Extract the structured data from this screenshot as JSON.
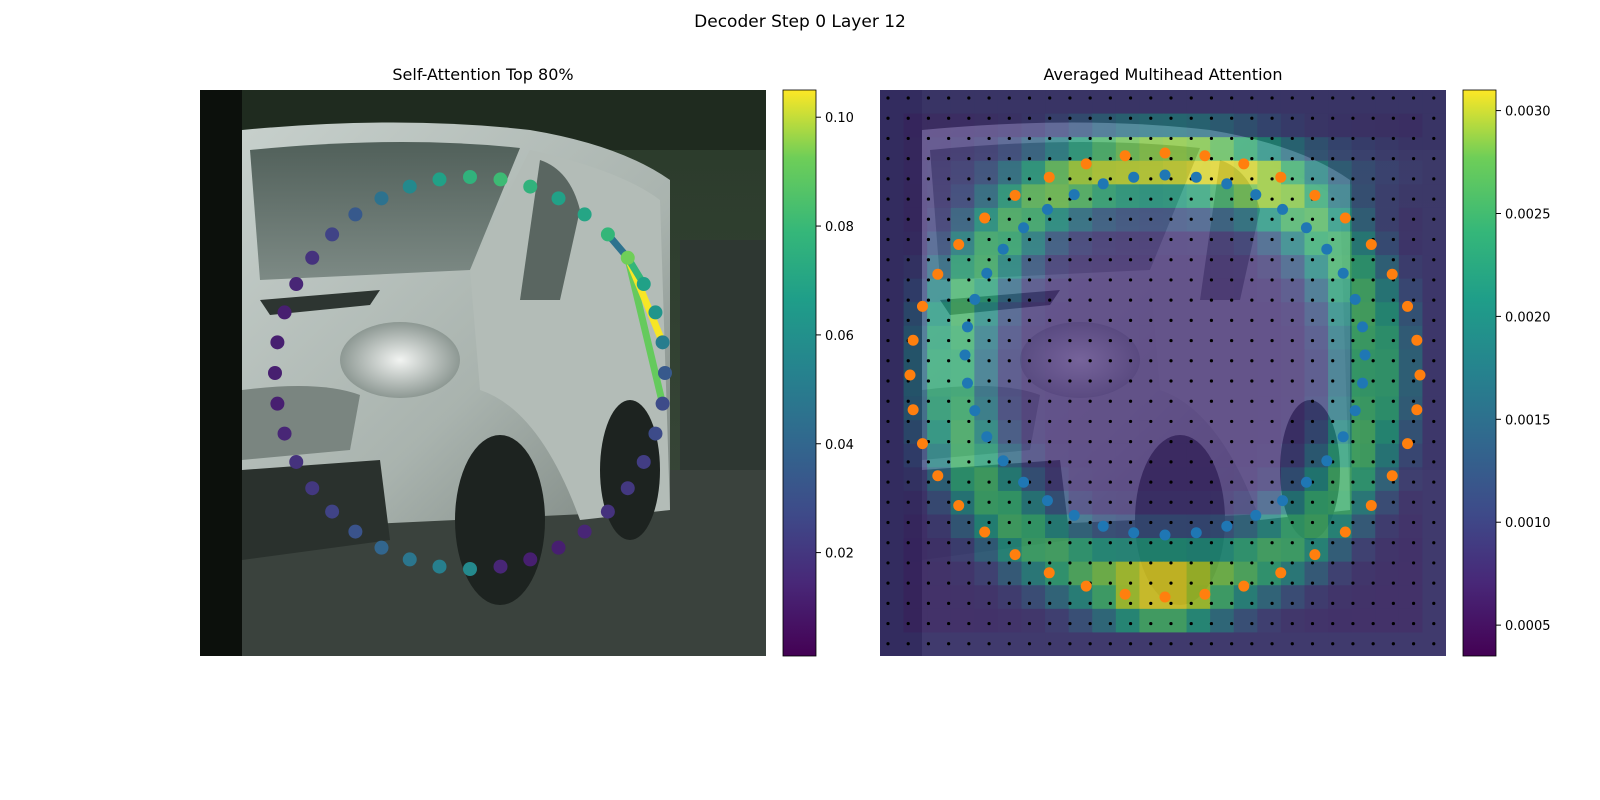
{
  "figure_title": "Decoder Step 0 Layer 12",
  "chart_data": [
    {
      "type": "scatter",
      "title": "Self-Attention Top 80%",
      "background": "grayscale van photograph",
      "colormap": "viridis",
      "colorbar": {
        "range": [
          0.001,
          0.105
        ],
        "ticks": [
          "0.02",
          "0.04",
          "0.06",
          "0.08",
          "0.10"
        ],
        "tick_values": [
          0.02,
          0.04,
          0.06,
          0.08,
          0.1
        ]
      },
      "points_order": "circle contour, starting at top, counterclockwise",
      "values": [
        0.05,
        0.046,
        0.042,
        0.035,
        0.028,
        0.022,
        0.018,
        0.016,
        0.012,
        0.01,
        0.01,
        0.01,
        0.01,
        0.012,
        0.016,
        0.022,
        0.03,
        0.04,
        0.05,
        0.06,
        0.068,
        0.072,
        0.068,
        0.06,
        0.062,
        0.07,
        0.082,
        0.06,
        0.055,
        0.045,
        0.03,
        0.025,
        0.025,
        0.02,
        0.018,
        0.016,
        0.012,
        0.01,
        0.01,
        0.012
      ],
      "attention_lines": [
        {
          "from_index": 26,
          "to_index": 31,
          "value": 0.08
        },
        {
          "from_index": 26,
          "to_index": 29,
          "value": 0.104
        },
        {
          "from_index": 26,
          "to_index": 27,
          "value": 0.07
        },
        {
          "from_index": 26,
          "to_index": 25,
          "value": 0.04
        }
      ]
    },
    {
      "type": "heatmap",
      "title": "Averaged Multihead Attention",
      "background": "van photograph overlay",
      "colormap": "viridis",
      "grid_size": [
        24,
        24
      ],
      "colorbar": {
        "range": [
          0.00035,
          0.0031
        ],
        "ticks": [
          "0.0005",
          "0.0010",
          "0.0015",
          "0.0020",
          "0.0025",
          "0.0030"
        ],
        "tick_values": [
          0.0005,
          0.001,
          0.0015,
          0.002,
          0.0025,
          0.003
        ]
      },
      "series": [
        {
          "role": "inner contour points",
          "color": "#1f77b4"
        },
        {
          "role": "outer contour points",
          "color": "#ff7f0e"
        },
        {
          "role": "reference grid points",
          "color": "#000000"
        }
      ]
    }
  ]
}
